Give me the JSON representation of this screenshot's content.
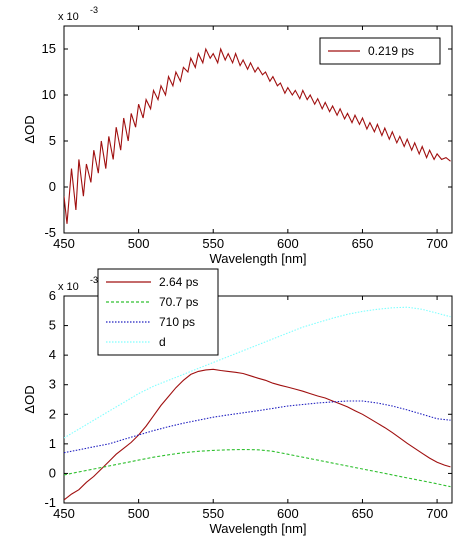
{
  "chart_data": [
    {
      "type": "line",
      "xlabel": "Wavelength [nm]",
      "ylabel": "ΔOD",
      "y_multiplier": "x 10",
      "y_exponent": "-3",
      "xlim": [
        450,
        710
      ],
      "ylim": [
        -5,
        17.5
      ],
      "xticks": [
        450,
        500,
        550,
        600,
        650,
        700
      ],
      "yticks": [
        -5,
        0,
        5,
        10,
        15
      ],
      "grid": false,
      "legend_position": "top-right",
      "series": [
        {
          "name": "0.219 ps",
          "color": "#a01010",
          "dash": "solid",
          "x": [
            450,
            452,
            455,
            458,
            460,
            463,
            465,
            468,
            470,
            473,
            475,
            478,
            480,
            483,
            485,
            488,
            490,
            493,
            495,
            498,
            500,
            503,
            505,
            508,
            510,
            513,
            515,
            518,
            520,
            523,
            525,
            528,
            530,
            533,
            535,
            538,
            540,
            543,
            545,
            548,
            550,
            553,
            555,
            558,
            560,
            563,
            565,
            568,
            570,
            573,
            575,
            578,
            580,
            583,
            585,
            588,
            590,
            593,
            595,
            598,
            600,
            603,
            605,
            608,
            610,
            613,
            615,
            618,
            620,
            623,
            625,
            628,
            630,
            633,
            635,
            638,
            640,
            643,
            645,
            648,
            650,
            653,
            655,
            658,
            660,
            663,
            665,
            668,
            670,
            673,
            675,
            678,
            680,
            683,
            685,
            688,
            690,
            693,
            695,
            698,
            700,
            703,
            706,
            709
          ],
          "y": [
            -1,
            -4,
            2,
            -2.5,
            3,
            -1,
            2.5,
            0.5,
            4,
            1.5,
            5,
            2,
            5.5,
            3,
            6.5,
            4,
            7.5,
            5,
            8,
            6.5,
            9,
            7.5,
            9.5,
            8.5,
            10.5,
            9.5,
            11,
            10,
            12,
            11,
            12.5,
            11.5,
            13,
            12.5,
            14,
            13,
            14.5,
            13.5,
            15,
            14,
            14.5,
            13.5,
            15,
            13.8,
            14.5,
            13.5,
            14.5,
            13.2,
            13.8,
            12.8,
            13.5,
            12.5,
            13,
            12.2,
            12.5,
            11.5,
            12,
            11,
            11.3,
            10.2,
            10.8,
            10,
            10.5,
            9.6,
            10.5,
            9.5,
            10,
            9,
            9.6,
            8.5,
            9.2,
            8.2,
            8.8,
            7.8,
            8.5,
            7.4,
            8,
            7,
            7.8,
            6.8,
            7.5,
            6.3,
            7,
            6,
            6.8,
            5.6,
            6.4,
            5.2,
            6,
            4.8,
            5.5,
            4.4,
            5.2,
            4,
            4.8,
            3.6,
            4.4,
            3.2,
            4,
            3,
            3.6,
            3,
            3.2,
            2.8
          ]
        }
      ]
    },
    {
      "type": "line",
      "xlabel": "Wavelength [nm]",
      "ylabel": "ΔOD",
      "y_multiplier": "x 10",
      "y_exponent": "-3",
      "xlim": [
        450,
        710
      ],
      "ylim": [
        -1,
        6
      ],
      "xticks": [
        450,
        500,
        550,
        600,
        650,
        700
      ],
      "yticks": [
        -1,
        0,
        1,
        2,
        3,
        4,
        5,
        6
      ],
      "grid": false,
      "legend_position": "top-left",
      "series": [
        {
          "name": "2.64 ps",
          "color": "#a01010",
          "dash": "solid",
          "x": [
            450,
            455,
            460,
            465,
            470,
            475,
            480,
            485,
            490,
            495,
            500,
            505,
            510,
            515,
            520,
            525,
            530,
            535,
            540,
            545,
            550,
            555,
            560,
            565,
            570,
            575,
            580,
            585,
            590,
            595,
            600,
            605,
            610,
            615,
            620,
            625,
            630,
            635,
            640,
            645,
            650,
            655,
            660,
            665,
            670,
            675,
            680,
            685,
            690,
            695,
            700,
            705,
            709
          ],
          "y": [
            -0.9,
            -0.7,
            -0.55,
            -0.3,
            -0.1,
            0.15,
            0.4,
            0.65,
            0.85,
            1.05,
            1.3,
            1.6,
            1.95,
            2.3,
            2.6,
            2.9,
            3.15,
            3.35,
            3.45,
            3.5,
            3.52,
            3.48,
            3.45,
            3.42,
            3.38,
            3.3,
            3.22,
            3.15,
            3.05,
            2.98,
            2.92,
            2.85,
            2.78,
            2.7,
            2.62,
            2.55,
            2.45,
            2.35,
            2.25,
            2.12,
            2.0,
            1.85,
            1.7,
            1.55,
            1.38,
            1.2,
            1.02,
            0.85,
            0.68,
            0.52,
            0.38,
            0.28,
            0.22
          ]
        },
        {
          "name": "70.7 ps",
          "color": "#30c030",
          "dash": "dash",
          "x": [
            450,
            460,
            470,
            480,
            490,
            500,
            510,
            520,
            530,
            540,
            550,
            560,
            570,
            580,
            590,
            600,
            610,
            620,
            630,
            640,
            650,
            660,
            670,
            680,
            690,
            700,
            709
          ],
          "y": [
            -0.05,
            0.05,
            0.15,
            0.25,
            0.35,
            0.45,
            0.55,
            0.63,
            0.7,
            0.75,
            0.78,
            0.8,
            0.81,
            0.8,
            0.75,
            0.65,
            0.55,
            0.45,
            0.35,
            0.25,
            0.15,
            0.05,
            -0.05,
            -0.15,
            -0.25,
            -0.35,
            -0.45
          ]
        },
        {
          "name": "710 ps",
          "color": "#2020c0",
          "dash": "dot",
          "x": [
            450,
            460,
            470,
            480,
            490,
            500,
            510,
            520,
            530,
            540,
            550,
            560,
            570,
            580,
            590,
            600,
            610,
            620,
            630,
            640,
            650,
            660,
            670,
            680,
            690,
            700,
            709
          ],
          "y": [
            0.7,
            0.8,
            0.9,
            1.0,
            1.15,
            1.3,
            1.45,
            1.58,
            1.7,
            1.8,
            1.9,
            1.98,
            2.05,
            2.12,
            2.2,
            2.28,
            2.33,
            2.38,
            2.42,
            2.45,
            2.45,
            2.38,
            2.28,
            2.15,
            2.0,
            1.85,
            1.8
          ]
        },
        {
          "name": "d",
          "color": "#80ffff",
          "dash": "dot",
          "x": [
            450,
            460,
            470,
            480,
            490,
            500,
            510,
            520,
            530,
            540,
            550,
            560,
            570,
            580,
            590,
            600,
            610,
            620,
            630,
            640,
            650,
            660,
            670,
            680,
            690,
            700,
            709
          ],
          "y": [
            1.2,
            1.5,
            1.8,
            2.1,
            2.4,
            2.7,
            2.95,
            3.15,
            3.35,
            3.55,
            3.75,
            3.95,
            4.15,
            4.35,
            4.55,
            4.75,
            4.95,
            5.1,
            5.25,
            5.38,
            5.48,
            5.55,
            5.6,
            5.62,
            5.55,
            5.42,
            5.3
          ]
        }
      ]
    }
  ]
}
